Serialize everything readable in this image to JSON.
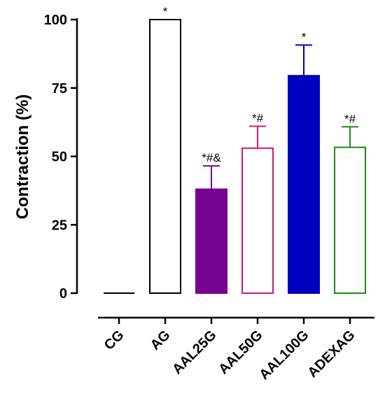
{
  "chart_data": {
    "type": "bar",
    "title": "",
    "xlabel": "",
    "ylabel": "Contraction (%)",
    "ylim": [
      0,
      100
    ],
    "yticks": [
      "0",
      "25",
      "50",
      "75",
      "100"
    ],
    "categories": [
      "CG",
      "AG",
      "AAL25G",
      "AAL50G",
      "AAL100G",
      "ADEXAG"
    ],
    "values": [
      0,
      100,
      38,
      53,
      79.5,
      53.3
    ],
    "errors": [
      0,
      0,
      8.5,
      8,
      11.2,
      7.5
    ],
    "annotations": [
      "",
      "*",
      "*#&",
      "*#",
      "*",
      "*#"
    ],
    "fill_colors": [
      "none",
      "none",
      "#760493",
      "none",
      "#0000C0",
      "none"
    ],
    "edge_colors": [
      "#000000",
      "#000000",
      "#760493",
      "#D01A6E",
      "#0000C0",
      "#1E8A14"
    ],
    "grid": false,
    "legend": "none"
  }
}
